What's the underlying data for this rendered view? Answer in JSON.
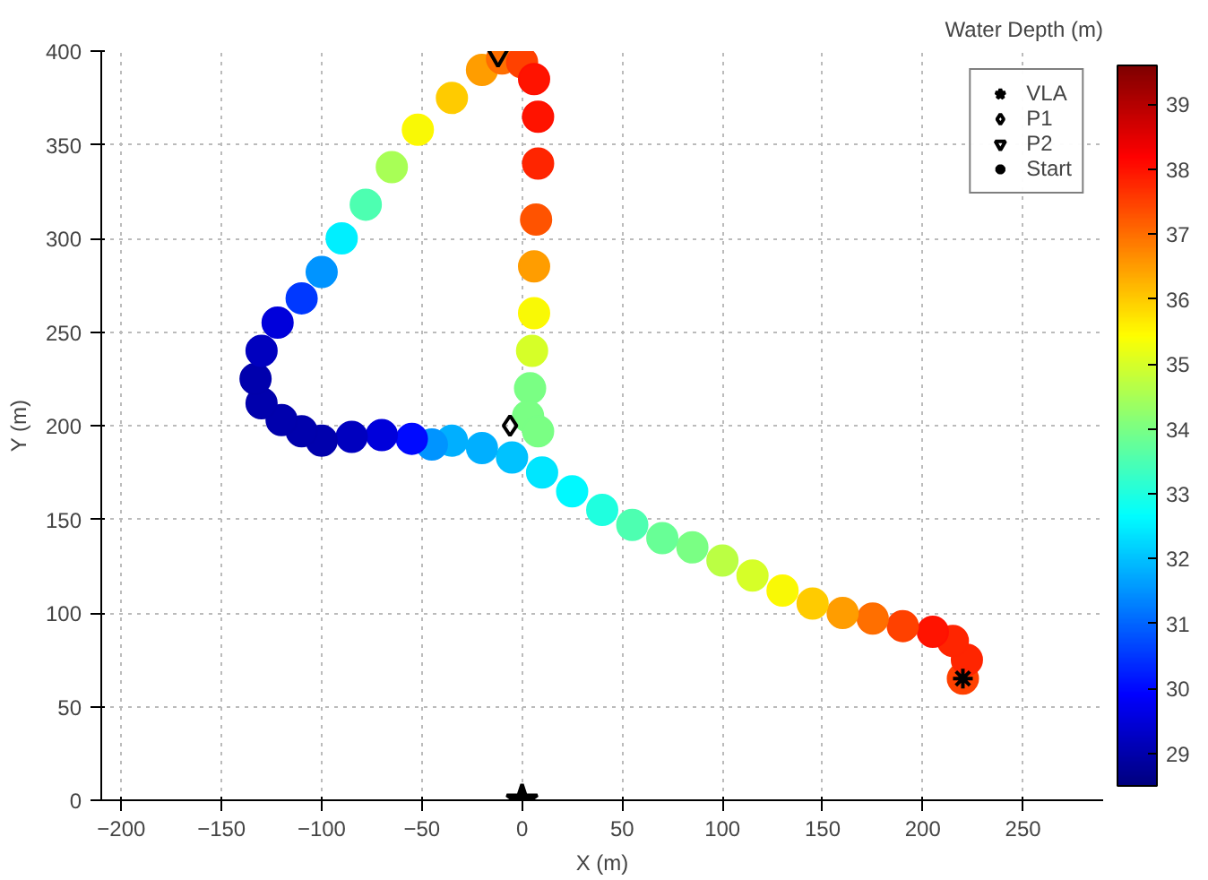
{
  "chart_data": {
    "type": "scatter",
    "xlabel": "X (m)",
    "ylabel": "Y (m)",
    "clabel": "Water Depth (m)",
    "xlim": [
      -210,
      290
    ],
    "ylim": [
      0,
      400
    ],
    "xticks": [
      -200,
      -150,
      -100,
      -50,
      0,
      50,
      100,
      150,
      200,
      250
    ],
    "yticks": [
      0,
      50,
      100,
      150,
      200,
      250,
      300,
      350,
      400
    ],
    "clim": [
      28.5,
      39.6
    ],
    "cticks": [
      29,
      30,
      31,
      32,
      33,
      34,
      35,
      36,
      37,
      38,
      39
    ],
    "grid": true,
    "legend": "top right",
    "series": [
      {
        "marker": "circle",
        "x": [
          220,
          222,
          215,
          205,
          190,
          175,
          160,
          145,
          130,
          115,
          100,
          85,
          70,
          55,
          40,
          25,
          10,
          -5,
          -20,
          -35,
          -45,
          -55,
          -70,
          -85,
          -100,
          -110,
          -120,
          -130,
          -133,
          -130,
          -122,
          -110,
          -100,
          -90,
          -78,
          -65,
          -52,
          -35,
          -20,
          -10,
          0,
          6,
          8,
          8,
          7,
          6,
          6,
          5,
          4,
          3,
          8
        ],
        "values": [
          65,
          75,
          85,
          90,
          93,
          97,
          100,
          105,
          112,
          120,
          128,
          135,
          140,
          147,
          155,
          165,
          175,
          183,
          188,
          192,
          190,
          193,
          195,
          194,
          192,
          197,
          203,
          212,
          225,
          240,
          255,
          268,
          282,
          300,
          318,
          338,
          358,
          375,
          390,
          396,
          394,
          385,
          365,
          340,
          310,
          285,
          260,
          240,
          220,
          205,
          197
        ],
        "colors": [
          "#ff4100",
          "#ff2500",
          "#ff2500",
          "#ff1300",
          "#ff4100",
          "#ff6f00",
          "#ff9d00",
          "#ffcb00",
          "#f9f905",
          "#d6ff28",
          "#bbff43",
          "#7aff84",
          "#68ff96",
          "#4dffb1",
          "#1fffdf",
          "#00f9ff",
          "#00e6ff",
          "#00c2ff",
          "#00afff",
          "#00afff",
          "#0094ff",
          "#000aff",
          "#0000db",
          "#0000bf",
          "#0000ad",
          "#0000ad",
          "#0000ad",
          "#0000ad",
          "#0000ad",
          "#0000bf",
          "#0000db",
          "#0038ff",
          "#0094ff",
          "#00efff",
          "#4dffb1",
          "#a8ff56",
          "#f9f905",
          "#ffcb00",
          "#ff9d00",
          "#ff6f00",
          "#ff4100",
          "#ff1300",
          "#ff1300",
          "#ff2500",
          "#ff5300",
          "#ff9d00",
          "#f9f905",
          "#d6ff28",
          "#7aff84",
          "#7aff84",
          "#7aff84"
        ],
        "cvalues": [
          37.5,
          37.8,
          37.8,
          38,
          37.5,
          37,
          36.5,
          36,
          35.5,
          35,
          34.7,
          34,
          33.8,
          33.5,
          33,
          32.6,
          32.4,
          32,
          31.8,
          31.8,
          31.5,
          30,
          29.5,
          29.2,
          29,
          29,
          29,
          29,
          29,
          29.2,
          29.5,
          30.5,
          31.5,
          32.5,
          33.5,
          34.5,
          35.5,
          36,
          36.5,
          37,
          37.5,
          38,
          38,
          37.8,
          37.3,
          36.5,
          35.5,
          35,
          34,
          34,
          34
        ]
      },
      {
        "name": "VLA",
        "marker": "star",
        "color": "#000000",
        "x": [
          0
        ],
        "values": [
          0
        ]
      },
      {
        "name": "P1",
        "marker": "diamond",
        "color": "#000000",
        "x": [
          -6
        ],
        "values": [
          200
        ]
      },
      {
        "name": "P2",
        "marker": "triangle",
        "color": "#000000",
        "x": [
          -12
        ],
        "values": [
          398
        ]
      },
      {
        "name": "Start",
        "marker": "cross",
        "color": "#000000",
        "x": [
          220
        ],
        "values": [
          65
        ]
      }
    ]
  }
}
